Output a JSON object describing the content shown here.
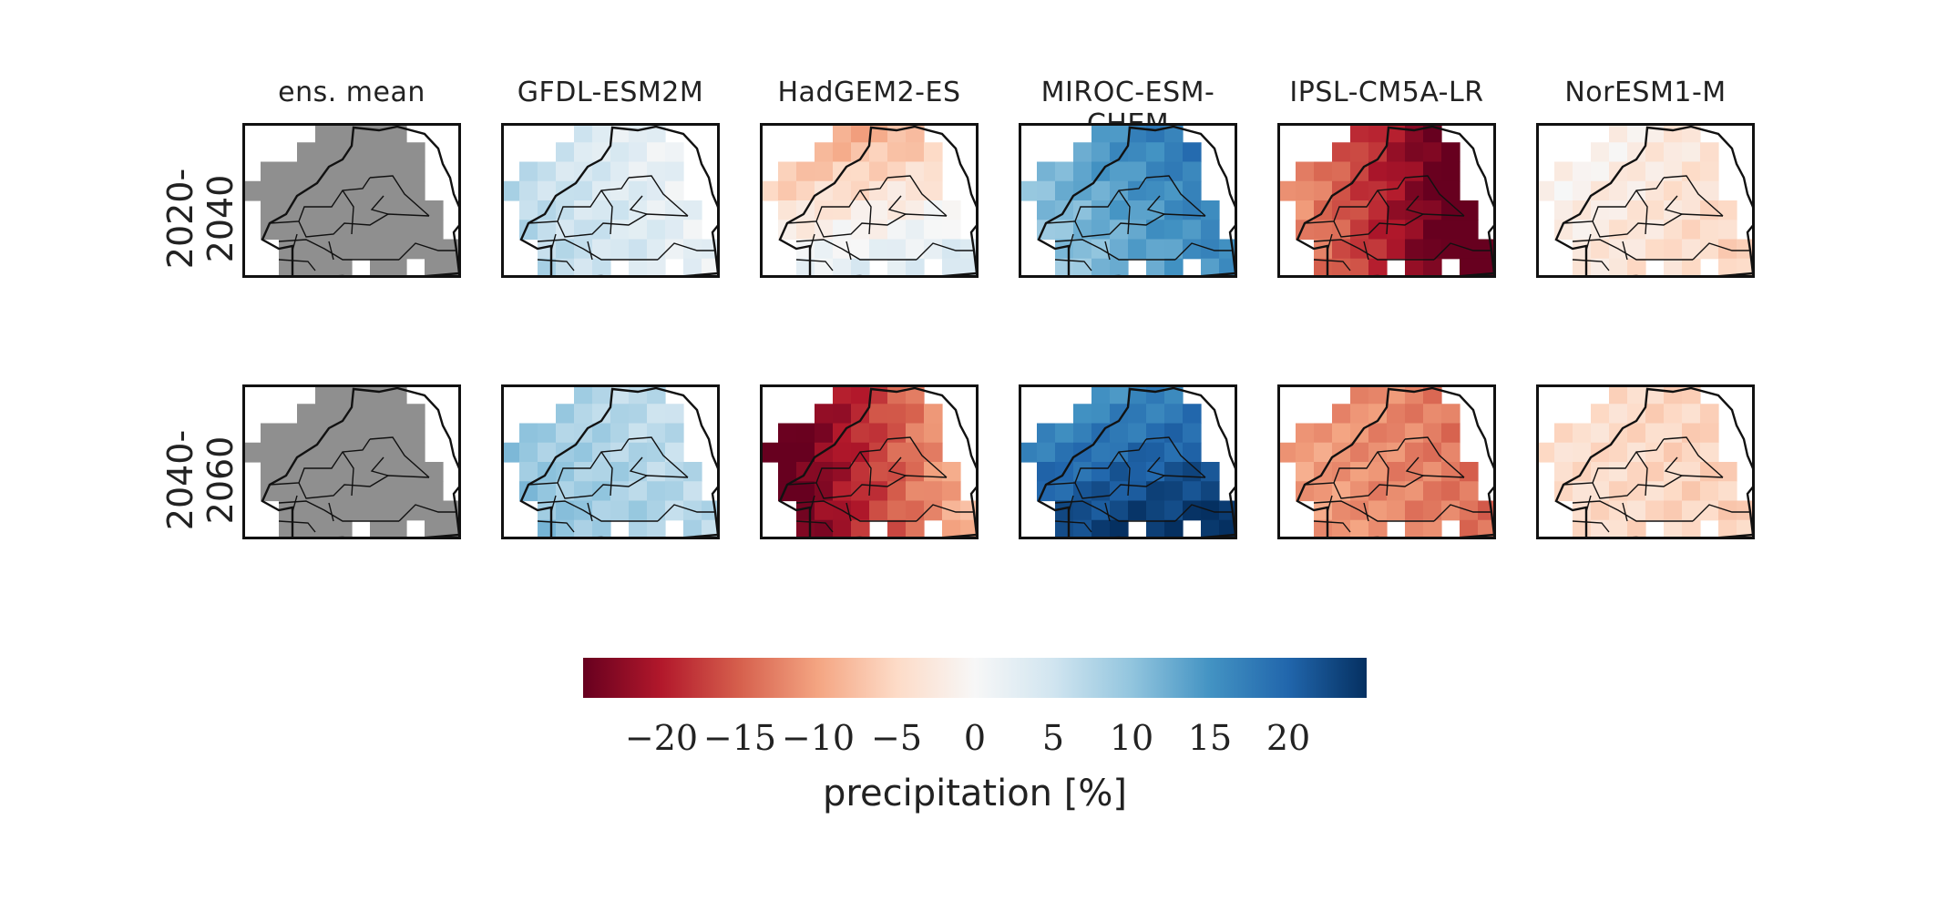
{
  "chart_data": {
    "type": "heatmap",
    "column_titles": [
      "ens. mean",
      "GFDL-ESM2M",
      "HadGEM2-ES",
      "MIROC-ESM-CHEM",
      "IPSL-CM5A-LR",
      "NorESM1-M"
    ],
    "row_labels": [
      "2020-2040",
      "2040-2060"
    ],
    "colorbar": {
      "label": "precipitation [%]",
      "ticks": [
        "−20",
        "−15",
        "−10",
        "−5",
        "0",
        "5",
        "10",
        "15",
        "20"
      ],
      "range": [
        -25,
        25
      ],
      "colormap": "RdBu",
      "colors": [
        "#67001f",
        "#b2182b",
        "#d6604d",
        "#f4a582",
        "#fddbc7",
        "#f7f7f7",
        "#d1e5f0",
        "#92c5de",
        "#4393c3",
        "#2166ac",
        "#053061"
      ]
    },
    "panels": [
      {
        "period": "2020-2040",
        "model": "ens. mean",
        "mean_change": null,
        "west_east_gradient": 0,
        "south_north_gradient": 0,
        "masked_gray": true
      },
      {
        "period": "2020-2040",
        "model": "GFDL-ESM2M",
        "mean_change": 4,
        "west_east_gradient": -3,
        "south_north_gradient": 1,
        "masked_gray": false
      },
      {
        "period": "2020-2040",
        "model": "HadGEM2-ES",
        "mean_change": -3,
        "west_east_gradient": 2,
        "south_north_gradient": 6,
        "masked_gray": false
      },
      {
        "period": "2020-2040",
        "model": "MIROC-ESM-CHEM",
        "mean_change": 14,
        "west_east_gradient": 4,
        "south_north_gradient": -2,
        "masked_gray": false
      },
      {
        "period": "2020-2040",
        "model": "IPSL-CM5A-LR",
        "mean_change": -20,
        "west_east_gradient": -10,
        "south_north_gradient": 0,
        "masked_gray": false
      },
      {
        "period": "2020-2040",
        "model": "NorESM1-M",
        "mean_change": -3,
        "west_east_gradient": -2,
        "south_north_gradient": -1,
        "masked_gray": false
      },
      {
        "period": "2040-2060",
        "model": "ens. mean",
        "mean_change": null,
        "west_east_gradient": 0,
        "south_north_gradient": 0,
        "masked_gray": true
      },
      {
        "period": "2040-2060",
        "model": "GFDL-ESM2M",
        "mean_change": 8,
        "west_east_gradient": -2,
        "south_north_gradient": 1,
        "masked_gray": false
      },
      {
        "period": "2040-2060",
        "model": "HadGEM2-ES",
        "mean_change": -18,
        "west_east_gradient": 10,
        "south_north_gradient": 0,
        "masked_gray": false
      },
      {
        "period": "2040-2060",
        "model": "MIROC-ESM-CHEM",
        "mean_change": 20,
        "west_east_gradient": 2,
        "south_north_gradient": 4,
        "masked_gray": false
      },
      {
        "period": "2040-2060",
        "model": "IPSL-CM5A-LR",
        "mean_change": -12,
        "west_east_gradient": -2,
        "south_north_gradient": 0,
        "masked_gray": false
      },
      {
        "period": "2040-2060",
        "model": "NorESM1-M",
        "mean_change": -5,
        "west_east_gradient": -1,
        "south_north_gradient": 0,
        "masked_gray": false
      }
    ]
  }
}
